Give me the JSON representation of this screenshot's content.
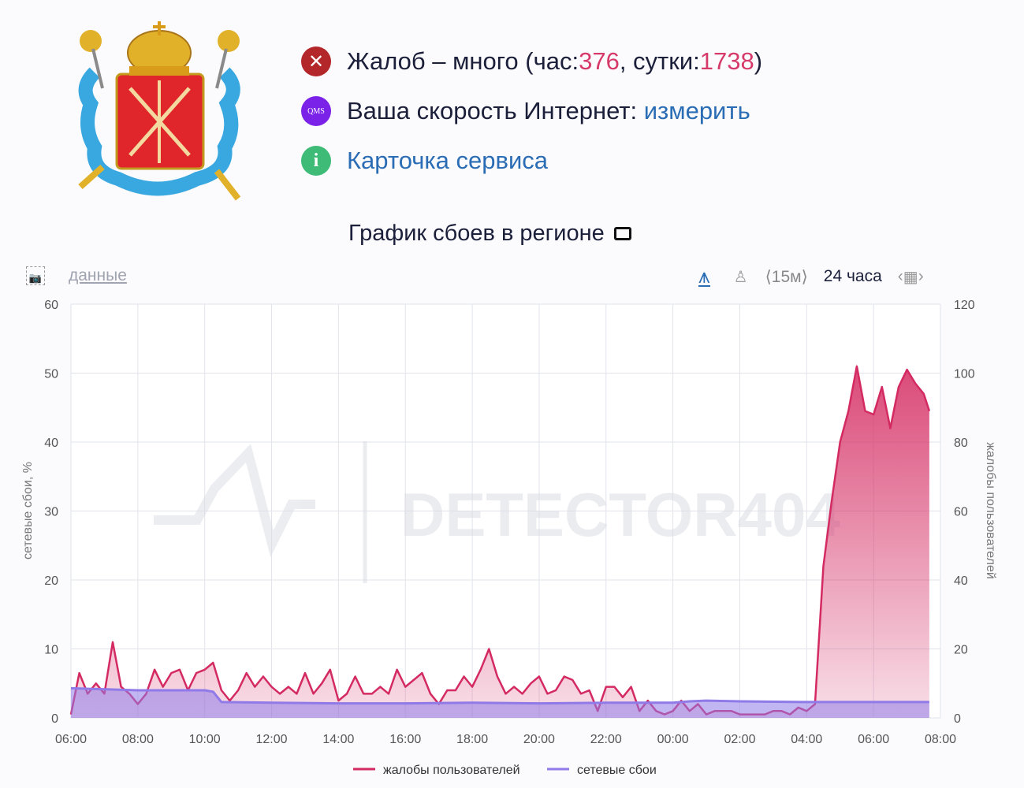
{
  "header": {
    "status": {
      "prefix": "Жалоб – много (час: ",
      "hour_count": "376",
      "middle": ", сутки: ",
      "day_count": "1738",
      "suffix": ")",
      "icon": "close-circle-icon",
      "color": "#b3262a"
    },
    "speed": {
      "label": "Ваша скорость Интернет: ",
      "link": "измерить",
      "icon_text": "QMS",
      "color": "#7b22e8"
    },
    "service_card": {
      "link": "Карточка сервиса",
      "icon": "info-circle-icon",
      "color": "#3dbb77"
    }
  },
  "chart_title": "График сбоев в регионе",
  "toolbar": {
    "data_link": "данные",
    "interval": "⟨15м⟩",
    "period": "24 часа"
  },
  "watermark": "DETECTOR404",
  "chart_data": {
    "type": "area",
    "xlabel": "",
    "ylabel_left": "сетевые сбои, %",
    "ylabel_right": "жалобы пользователей",
    "x_ticks": [
      "06:00",
      "08:00",
      "10:00",
      "12:00",
      "14:00",
      "16:00",
      "18:00",
      "20:00",
      "22:00",
      "00:00",
      "02:00",
      "04:00",
      "06:00",
      "08:00"
    ],
    "y_left": {
      "range": [
        0,
        60
      ],
      "ticks": [
        "0",
        "10",
        "20",
        "30",
        "40",
        "50",
        "60"
      ]
    },
    "y_right": {
      "range": [
        0,
        120
      ],
      "ticks": [
        "0",
        "20",
        "40",
        "60",
        "80",
        "100",
        "120"
      ]
    },
    "grid": true,
    "legend_position": "bottom",
    "series": [
      {
        "name": "жалобы пользователей",
        "axis": "right",
        "color": "#d42a62",
        "points": [
          [
            "06:00",
            1
          ],
          [
            "06:15",
            13
          ],
          [
            "06:30",
            7
          ],
          [
            "06:45",
            10
          ],
          [
            "07:00",
            7
          ],
          [
            "07:15",
            22
          ],
          [
            "07:30",
            9
          ],
          [
            "07:45",
            7
          ],
          [
            "08:00",
            4
          ],
          [
            "08:15",
            7
          ],
          [
            "08:30",
            14
          ],
          [
            "08:45",
            9
          ],
          [
            "09:00",
            13
          ],
          [
            "09:15",
            14
          ],
          [
            "09:30",
            8
          ],
          [
            "09:45",
            13
          ],
          [
            "10:00",
            14
          ],
          [
            "10:15",
            16
          ],
          [
            "10:30",
            8
          ],
          [
            "10:45",
            5
          ],
          [
            "11:00",
            8
          ],
          [
            "11:15",
            13
          ],
          [
            "11:30",
            9
          ],
          [
            "11:45",
            12
          ],
          [
            "12:00",
            9
          ],
          [
            "12:15",
            7
          ],
          [
            "12:30",
            9
          ],
          [
            "12:45",
            7
          ],
          [
            "13:00",
            13
          ],
          [
            "13:15",
            7
          ],
          [
            "13:30",
            10
          ],
          [
            "13:45",
            14
          ],
          [
            "14:00",
            5
          ],
          [
            "14:15",
            7
          ],
          [
            "14:30",
            12
          ],
          [
            "14:45",
            7
          ],
          [
            "15:00",
            7
          ],
          [
            "15:15",
            9
          ],
          [
            "15:30",
            7
          ],
          [
            "15:45",
            14
          ],
          [
            "16:00",
            9
          ],
          [
            "16:15",
            11
          ],
          [
            "16:30",
            13
          ],
          [
            "16:45",
            7
          ],
          [
            "17:00",
            4
          ],
          [
            "17:15",
            8
          ],
          [
            "17:30",
            8
          ],
          [
            "17:45",
            12
          ],
          [
            "18:00",
            9
          ],
          [
            "18:15",
            14
          ],
          [
            "18:30",
            20
          ],
          [
            "18:45",
            12
          ],
          [
            "19:00",
            7
          ],
          [
            "19:15",
            9
          ],
          [
            "19:30",
            7
          ],
          [
            "19:45",
            10
          ],
          [
            "20:00",
            12
          ],
          [
            "20:15",
            7
          ],
          [
            "20:30",
            8
          ],
          [
            "20:45",
            12
          ],
          [
            "21:00",
            11
          ],
          [
            "21:15",
            7
          ],
          [
            "21:30",
            8
          ],
          [
            "21:45",
            2
          ],
          [
            "22:00",
            9
          ],
          [
            "22:15",
            9
          ],
          [
            "22:30",
            6
          ],
          [
            "22:45",
            9
          ],
          [
            "23:00",
            2
          ],
          [
            "23:15",
            5
          ],
          [
            "23:30",
            2
          ],
          [
            "23:45",
            1
          ],
          [
            "00:00",
            2
          ],
          [
            "00:15",
            5
          ],
          [
            "00:30",
            2
          ],
          [
            "00:45",
            4
          ],
          [
            "01:00",
            1
          ],
          [
            "01:15",
            2
          ],
          [
            "01:30",
            2
          ],
          [
            "01:45",
            2
          ],
          [
            "02:00",
            1
          ],
          [
            "02:15",
            1
          ],
          [
            "02:30",
            1
          ],
          [
            "02:45",
            1
          ],
          [
            "03:00",
            2
          ],
          [
            "03:15",
            2
          ],
          [
            "03:30",
            1
          ],
          [
            "03:45",
            3
          ],
          [
            "04:00",
            2
          ],
          [
            "04:15",
            4
          ],
          [
            "04:30",
            44
          ],
          [
            "04:45",
            63
          ],
          [
            "05:00",
            80
          ],
          [
            "05:15",
            89
          ],
          [
            "05:30",
            102
          ],
          [
            "05:45",
            89
          ],
          [
            "06:00",
            88
          ],
          [
            "06:15",
            96
          ],
          [
            "06:30",
            84
          ],
          [
            "06:45",
            96
          ],
          [
            "07:00",
            101
          ],
          [
            "07:15",
            97
          ],
          [
            "07:30",
            94
          ],
          [
            "07:40",
            89
          ]
        ]
      },
      {
        "name": "сетевые сбои",
        "axis": "left",
        "color": "#8f7ae8",
        "points": [
          [
            "06:00",
            4.3
          ],
          [
            "08:00",
            4.0
          ],
          [
            "09:00",
            4.0
          ],
          [
            "10:00",
            4.0
          ],
          [
            "10:15",
            3.8
          ],
          [
            "10:30",
            2.3
          ],
          [
            "12:00",
            2.2
          ],
          [
            "14:00",
            2.1
          ],
          [
            "16:00",
            2.1
          ],
          [
            "18:00",
            2.2
          ],
          [
            "20:00",
            2.1
          ],
          [
            "22:00",
            2.2
          ],
          [
            "23:00",
            2.2
          ],
          [
            "00:00",
            2.2
          ],
          [
            "00:30",
            2.4
          ],
          [
            "01:00",
            2.5
          ],
          [
            "02:00",
            2.4
          ],
          [
            "04:00",
            2.3
          ],
          [
            "06:00",
            2.3
          ],
          [
            "07:40",
            2.3
          ]
        ]
      }
    ]
  }
}
